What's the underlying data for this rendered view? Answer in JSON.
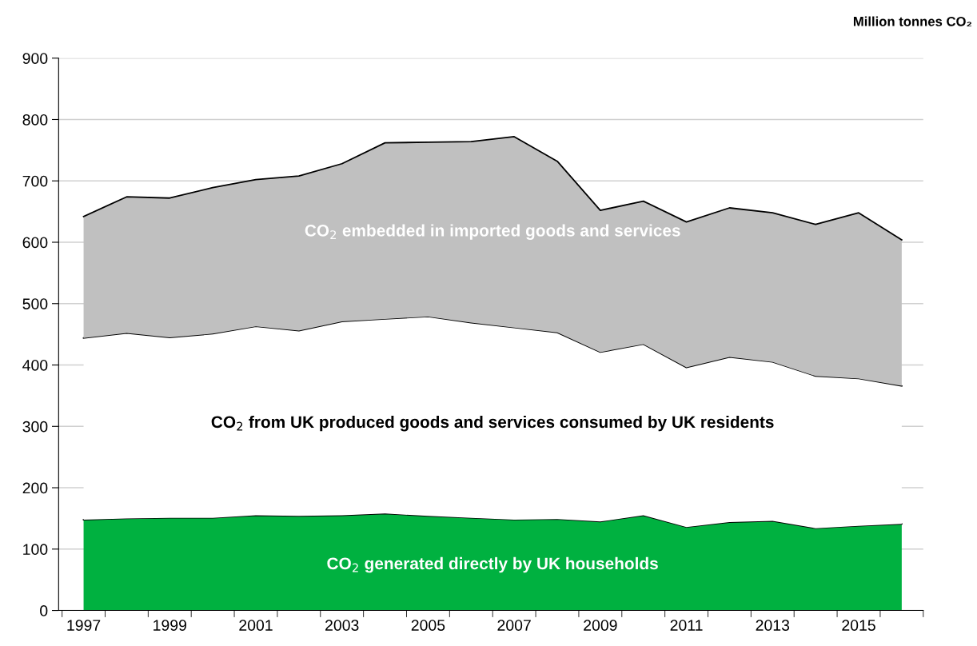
{
  "chart_data": {
    "type": "area",
    "stacked": true,
    "ylabel": "Million tonnes CO₂",
    "categories": [
      "1997",
      null,
      "1999",
      null,
      "2001",
      null,
      "2003",
      null,
      "2005",
      null,
      "2007",
      null,
      "2009",
      null,
      "2011",
      null,
      "2013",
      null,
      "2015",
      null
    ],
    "series": [
      {
        "name": "CO$_{2}$ generated directly by UK households",
        "color": "#00b140",
        "values": [
          148,
          150,
          151,
          151,
          155,
          154,
          155,
          158,
          154,
          151,
          148,
          149,
          145,
          155,
          136,
          144,
          146,
          134,
          138,
          141
        ]
      },
      {
        "name": "CO$_{2}$ from UK produced goods and services consumed by UK residents",
        "color": "#ffffff",
        "values": [
          296,
          302,
          294,
          300,
          308,
          302,
          316,
          317,
          325,
          318,
          313,
          304,
          276,
          279,
          260,
          269,
          259,
          248,
          240,
          225
        ]
      },
      {
        "name": "CO$_{2}$ embedded in imported goods and services",
        "color": "#c0c0c0",
        "values": [
          198,
          222,
          227,
          238,
          239,
          252,
          257,
          287,
          284,
          295,
          311,
          279,
          231,
          233,
          237,
          243,
          243,
          247,
          270,
          238
        ]
      }
    ],
    "ylim": [
      0,
      900
    ],
    "yticks": [
      0,
      100,
      200,
      300,
      400,
      500,
      600,
      700,
      800,
      900
    ],
    "grid": "y",
    "legend": false
  }
}
